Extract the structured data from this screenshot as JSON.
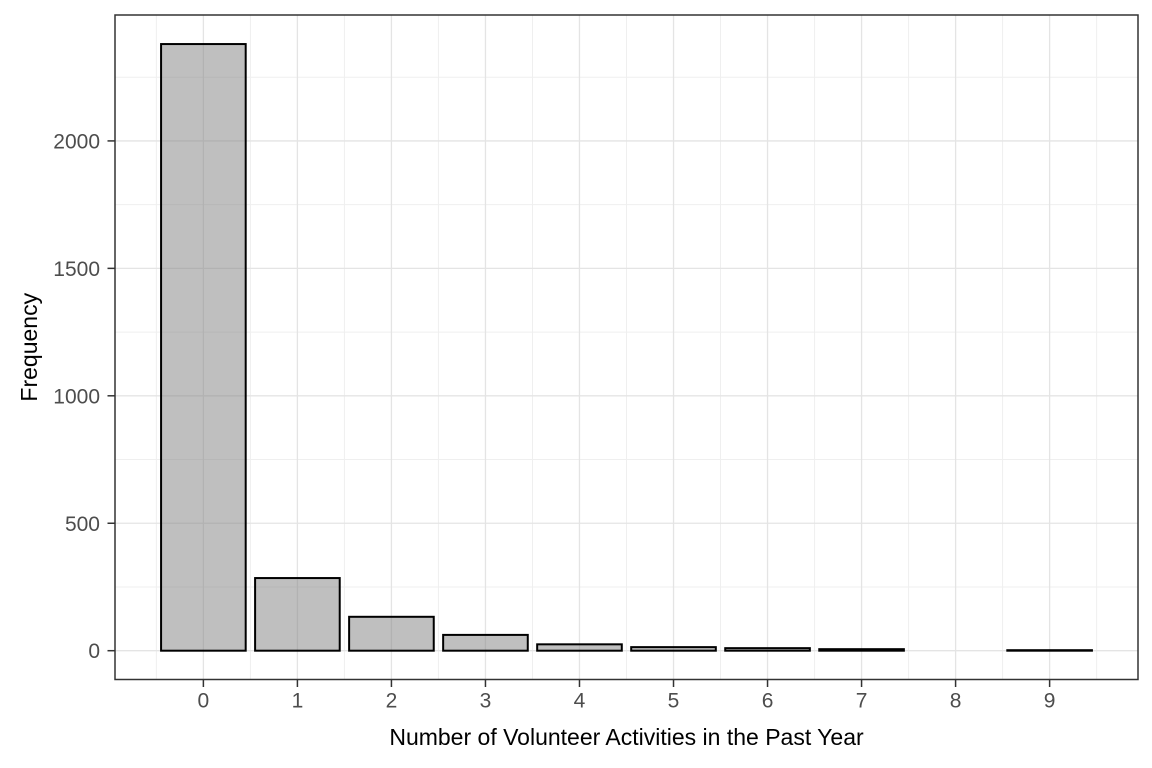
{
  "chart_data": {
    "type": "bar",
    "title": "",
    "xlabel": "Number of Volunteer Activities in the Past Year",
    "ylabel": "Frequency",
    "categories": [
      "0",
      "1",
      "2",
      "3",
      "4",
      "5",
      "6",
      "7",
      "8",
      "9"
    ],
    "values": [
      2380,
      285,
      133,
      62,
      25,
      14,
      10,
      6,
      0,
      2
    ],
    "bar_width": 0.9,
    "xlim": [
      -0.94,
      9.94
    ],
    "ylim": [
      -113,
      2494
    ],
    "x_major_ticks": [
      0,
      1,
      2,
      3,
      4,
      5,
      6,
      7,
      8,
      9
    ],
    "x_tick_labels": [
      "0",
      "1",
      "2",
      "3",
      "4",
      "5",
      "6",
      "7",
      "8",
      "9"
    ],
    "y_major_ticks": [
      0,
      500,
      1000,
      1500,
      2000
    ],
    "y_tick_labels": [
      "0",
      "500",
      "1000",
      "1500",
      "2000"
    ],
    "x_minor_ticks": [
      -0.5,
      0.5,
      1.5,
      2.5,
      3.5,
      4.5,
      5.5,
      6.5,
      7.5,
      8.5,
      9.5
    ],
    "y_minor_ticks": [
      250,
      750,
      1250,
      1750,
      2250
    ],
    "grid": "major+minor",
    "legend_position": "none",
    "theme": "ggplot-theme-bw",
    "colors": {
      "background": "#ffffff",
      "panel_background": "#ffffff",
      "bar_fill": "rgba(127,127,127,0.5)",
      "bar_stroke": "#000000",
      "panel_border": "#333333",
      "grid_major": "#e4e4e4",
      "grid_minor": "#efefef",
      "tick_mark": "#333333",
      "tick_label": "#4d4d4d",
      "axis_title": "#000000"
    }
  }
}
